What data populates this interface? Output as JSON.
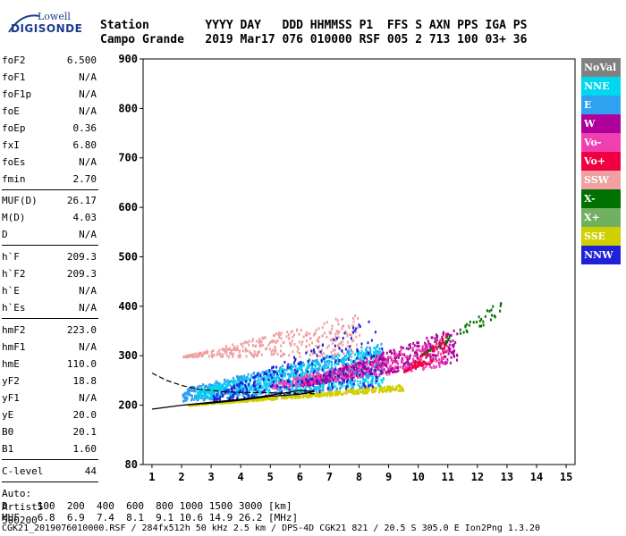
{
  "logo": {
    "top": "Lowell",
    "main": "DIGISONDE"
  },
  "header": {
    "row1": "Station        YYYY DAY   DDD HHMMSS P1  FFS S AXN PPS IGA PS",
    "row2": "Campo Grande   2019 Mar17 076 010000 RSF 005 2 713 100 03+ 36"
  },
  "params_a": [
    {
      "k": "foF2",
      "v": "6.500"
    },
    {
      "k": "foF1",
      "v": "N/A"
    },
    {
      "k": "foF1p",
      "v": "N/A"
    },
    {
      "k": "foE",
      "v": "N/A"
    },
    {
      "k": "foEp",
      "v": "0.36"
    },
    {
      "k": "fxI",
      "v": "6.80"
    },
    {
      "k": "foEs",
      "v": "N/A"
    },
    {
      "k": "fmin",
      "v": "2.70"
    }
  ],
  "params_b": [
    {
      "k": "MUF(D)",
      "v": "26.17"
    },
    {
      "k": "M(D)",
      "v": "4.03"
    },
    {
      "k": "D",
      "v": "N/A"
    }
  ],
  "params_c": [
    {
      "k": "h`F",
      "v": "209.3"
    },
    {
      "k": "h`F2",
      "v": "209.3"
    },
    {
      "k": "h`E",
      "v": "N/A"
    },
    {
      "k": "h`Es",
      "v": "N/A"
    }
  ],
  "params_d": [
    {
      "k": "hmF2",
      "v": "223.0"
    },
    {
      "k": "hmF1",
      "v": "N/A"
    },
    {
      "k": "hmE",
      "v": "110.0"
    },
    {
      "k": "yF2",
      "v": "18.8"
    },
    {
      "k": "yF1",
      "v": "N/A"
    },
    {
      "k": "yE",
      "v": "20.0"
    },
    {
      "k": "B0",
      "v": "20.1"
    },
    {
      "k": "B1",
      "v": "1.60"
    }
  ],
  "clevel": {
    "k": "C-level",
    "v": "44"
  },
  "auto": {
    "l1": "Auto:",
    "l2": "Artist5",
    "l3": "500200"
  },
  "legend": [
    {
      "label": "NoVal",
      "color": "#808080"
    },
    {
      "label": "NNE",
      "color": "#00d8f0"
    },
    {
      "label": "E",
      "color": "#30a0f0"
    },
    {
      "label": "W",
      "color": "#b0009c"
    },
    {
      "label": "Vo-",
      "color": "#f040b0"
    },
    {
      "label": "Vo+",
      "color": "#f00040"
    },
    {
      "label": "SSW",
      "color": "#f0a0a0"
    },
    {
      "label": "X-",
      "color": "#007000"
    },
    {
      "label": "X+",
      "color": "#70b060"
    },
    {
      "label": "SSE",
      "color": "#d0d000"
    },
    {
      "label": "NNW",
      "color": "#2020d8"
    }
  ],
  "bottom": {
    "row1": "D     100  200  400  600  800 1000 1500 3000 [km]",
    "row2": "MUF   6.8  6.9  7.4  8.1  9.1 10.6 14.9 26.2 [MHz]",
    "row3": "CGK21_2019076010000.RSF / 284fx512h 50 kHz 2.5 km / DPS-4D CGK21 821 / 20.5 S 305.0 E Ion2Png 1.3.20"
  },
  "chart_data": {
    "type": "scatter",
    "xlim": [
      0.7,
      15.3
    ],
    "ylim": [
      80,
      900
    ],
    "xticks": [
      1,
      2,
      3,
      4,
      5,
      6,
      7,
      8,
      9,
      10,
      11,
      12,
      13,
      14,
      15
    ],
    "yticks": [
      80,
      200,
      300,
      400,
      500,
      600,
      700,
      800,
      900
    ],
    "ytick_labels": [
      "80",
      "200",
      "300",
      "400",
      "500",
      "600",
      "700",
      "800",
      "900"
    ],
    "trace_solid": [
      [
        2.0,
        200
      ],
      [
        3.0,
        206
      ],
      [
        4.0,
        212
      ],
      [
        5.0,
        220
      ],
      [
        5.6,
        226
      ],
      [
        6.0,
        230
      ],
      [
        6.5,
        228
      ],
      [
        6.0,
        222
      ],
      [
        5.0,
        218
      ],
      [
        4.0,
        210
      ],
      [
        3.0,
        204
      ],
      [
        2.0,
        200
      ],
      [
        1.0,
        192
      ]
    ],
    "trace_dashed": [
      [
        1.0,
        265
      ],
      [
        1.5,
        250
      ],
      [
        2.0,
        240
      ],
      [
        2.5,
        233
      ],
      [
        3.0,
        230
      ],
      [
        3.5,
        227
      ],
      [
        4.0,
        226
      ],
      [
        5.0,
        225
      ],
      [
        6.0,
        224
      ],
      [
        6.5,
        223
      ]
    ],
    "regions": [
      {
        "color": "#30a0f0",
        "x": [
          2.0,
          8.8
        ],
        "y0": [
          210,
          240
        ],
        "h": [
          25,
          90
        ],
        "n": 900
      },
      {
        "color": "#00d8f0",
        "x": [
          2.5,
          8.8
        ],
        "y0": [
          215,
          245
        ],
        "h": [
          20,
          80
        ],
        "n": 500
      },
      {
        "color": "#b0009c",
        "x": [
          6.0,
          11.3
        ],
        "y0": [
          240,
          290
        ],
        "h": [
          10,
          70
        ],
        "n": 500
      },
      {
        "color": "#f040b0",
        "x": [
          5.0,
          11.0
        ],
        "y0": [
          235,
          280
        ],
        "h": [
          10,
          60
        ],
        "n": 300
      },
      {
        "color": "#f0a0a0",
        "x": [
          2.0,
          8.0
        ],
        "y0": [
          300,
          300
        ],
        "h": [
          0,
          90
        ],
        "n": 350
      },
      {
        "color": "#d0d000",
        "x": [
          2.2,
          9.5
        ],
        "y0": [
          202,
          232
        ],
        "h": [
          0,
          12
        ],
        "n": 400
      },
      {
        "color": "#2020d8",
        "x": [
          3.0,
          8.8
        ],
        "y0": [
          210,
          240
        ],
        "h": [
          10,
          150
        ],
        "n": 250
      },
      {
        "color": "#007000",
        "x": [
          10.0,
          12.8
        ],
        "y0": [
          300,
          380
        ],
        "h": [
          0,
          40
        ],
        "n": 60
      },
      {
        "color": "#f00040",
        "x": [
          9.5,
          11.0
        ],
        "y0": [
          270,
          300
        ],
        "h": [
          0,
          60
        ],
        "n": 80
      }
    ]
  }
}
